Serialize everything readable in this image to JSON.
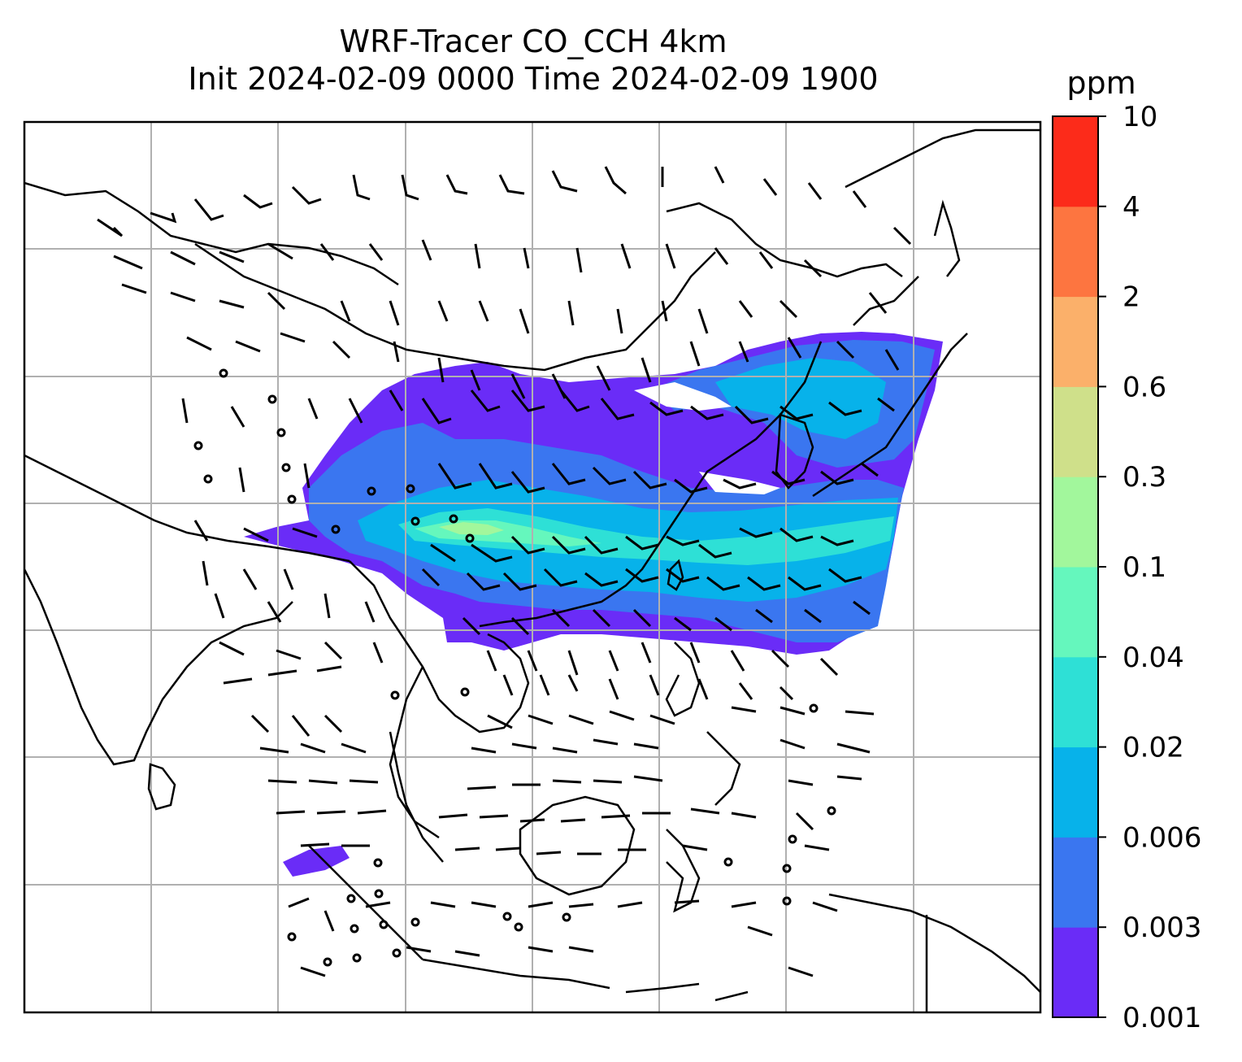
{
  "title": {
    "line1": "WRF-Tracer CO_CCH 4km",
    "line2": "Init 2024-02-09 0000 Time 2024-02-09 1900"
  },
  "colorbar": {
    "unit": "ppm",
    "levels": [
      "0.001",
      "0.003",
      "0.006",
      "0.02",
      "0.04",
      "0.1",
      "0.3",
      "0.6",
      "2",
      "4",
      "10"
    ],
    "colors": [
      "#6a2cf7",
      "#3a76f0",
      "#07b2ea",
      "#2ee0d6",
      "#65f7bd",
      "#a2f79c",
      "#cfe08a",
      "#fbb06a",
      "#fd7540",
      "#fc2b1a"
    ]
  },
  "map": {
    "region": "East and Southeast Asia",
    "gridlines": true,
    "coastline_color": "#000000",
    "tracer_plume_colors": [
      "#6a2cf7",
      "#3a76f0",
      "#07b2ea",
      "#2ee0d6",
      "#65f7bd",
      "#a2f79c"
    ],
    "wind_barbs": "black"
  }
}
